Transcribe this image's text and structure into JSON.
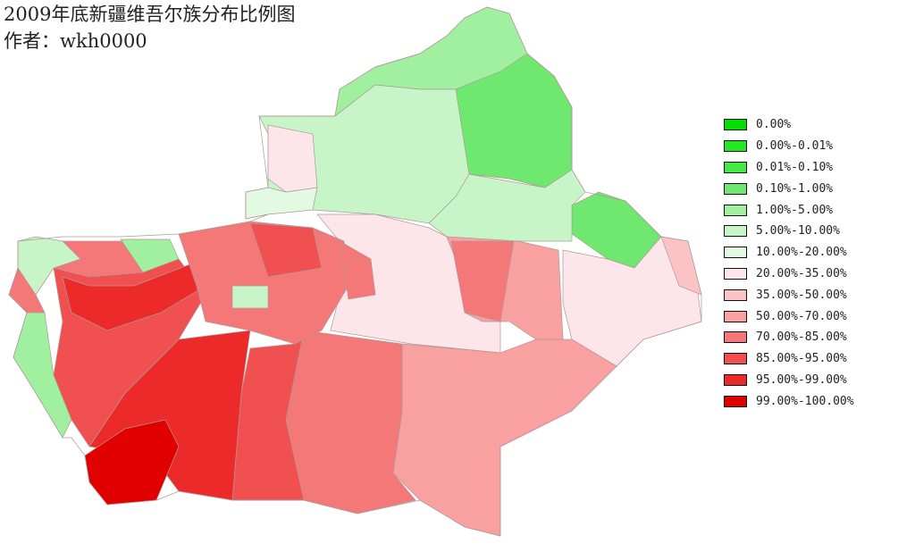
{
  "title": "2009年底新疆维吾尔族分布比例图",
  "author": "作者：wkh0000",
  "legend": [
    {
      "label": "0.00%",
      "color": "#00e000"
    },
    {
      "label": "0.00%-0.01%",
      "color": "#22e822"
    },
    {
      "label": "0.01%-0.10%",
      "color": "#44e844"
    },
    {
      "label": "0.10%-1.00%",
      "color": "#6fe86f"
    },
    {
      "label": "1.00%-5.00%",
      "color": "#a0f0a0"
    },
    {
      "label": "5.00%-10.00%",
      "color": "#c8f5c8"
    },
    {
      "label": "10.00%-20.00%",
      "color": "#e2fae2"
    },
    {
      "label": "20.00%-35.00%",
      "color": "#fde6ea"
    },
    {
      "label": "35.00%-50.00%",
      "color": "#fbc3c3"
    },
    {
      "label": "50.00%-70.00%",
      "color": "#f9a0a0"
    },
    {
      "label": "70.00%-85.00%",
      "color": "#f47878"
    },
    {
      "label": "85.00%-95.00%",
      "color": "#f05050"
    },
    {
      "label": "95.00%-99.00%",
      "color": "#ec2a2a"
    },
    {
      "label": "99.00%-100.00%",
      "color": "#e00000"
    }
  ],
  "border_color": "#c0309a"
}
